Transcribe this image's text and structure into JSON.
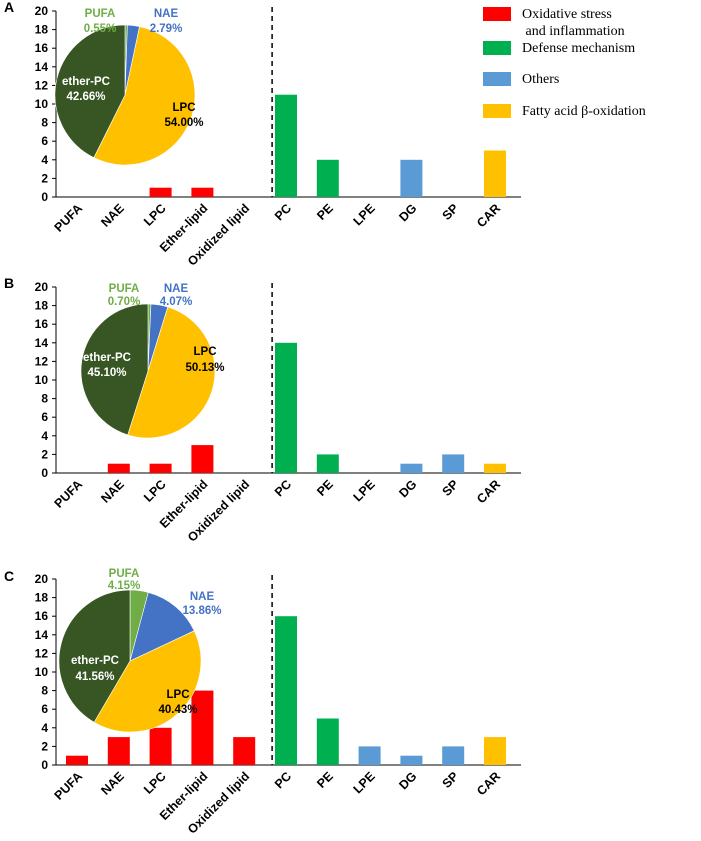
{
  "legend": [
    {
      "label_lines": [
        "Oxidative stress",
        " and inflammation"
      ],
      "color": "#ff0000"
    },
    {
      "label_lines": [
        "Defense mechanism"
      ],
      "color": "#00b050"
    },
    {
      "label_lines": [
        "Others"
      ],
      "color": "#5b9bd5"
    },
    {
      "label_lines": [
        "Fatty acid β-oxidation"
      ],
      "color": "#ffc000"
    }
  ],
  "chart_data": [
    {
      "panel": "A",
      "type": "bar",
      "categories": [
        "PUFA",
        "NAE",
        "LPC",
        "Ether-lipid",
        "Oxidized lipid",
        "PC",
        "PE",
        "LPE",
        "DG",
        "SP",
        "CAR"
      ],
      "values": [
        0,
        0,
        1,
        1,
        0,
        11,
        4,
        0,
        4,
        0,
        5
      ],
      "bar_colors": [
        "#ff0000",
        "#ff0000",
        "#ff0000",
        "#ff0000",
        "#ff0000",
        "#00b050",
        "#00b050",
        "#5b9bd5",
        "#5b9bd5",
        "#5b9bd5",
        "#ffc000"
      ],
      "yticks": [
        "0",
        "2",
        "4",
        "6",
        "8",
        "10",
        "12",
        "14",
        "16",
        "18",
        "20"
      ],
      "ylim": [
        0,
        20
      ],
      "divider_after": "Oxidized lipid",
      "inset_pie": {
        "type": "pie",
        "slices": [
          {
            "name": "PUFA",
            "pct_label": "0.55%",
            "value": 0.55,
            "color": "#70ad47",
            "label_color": "#70ad47"
          },
          {
            "name": "NAE",
            "pct_label": "2.79%",
            "value": 2.79,
            "color": "#4472c4",
            "label_color": "#4472c4"
          },
          {
            "name": "LPC",
            "pct_label": "54.00%",
            "value": 54.0,
            "color": "#ffc000",
            "label_color": "#000000"
          },
          {
            "name": "ether-PC",
            "pct_label": "42.66%",
            "value": 42.66,
            "color": "#375623",
            "label_color": "#ffffff"
          }
        ]
      }
    },
    {
      "panel": "B",
      "type": "bar",
      "categories": [
        "PUFA",
        "NAE",
        "LPC",
        "Ether-lipid",
        "Oxidized lipid",
        "PC",
        "PE",
        "LPE",
        "DG",
        "SP",
        "CAR"
      ],
      "values": [
        0,
        1,
        1,
        3,
        0,
        14,
        2,
        0,
        1,
        2,
        1
      ],
      "bar_colors": [
        "#ff0000",
        "#ff0000",
        "#ff0000",
        "#ff0000",
        "#ff0000",
        "#00b050",
        "#00b050",
        "#5b9bd5",
        "#5b9bd5",
        "#5b9bd5",
        "#ffc000"
      ],
      "yticks": [
        "0",
        "2",
        "4",
        "6",
        "8",
        "10",
        "12",
        "14",
        "16",
        "18",
        "20"
      ],
      "ylim": [
        0,
        20
      ],
      "divider_after": "Oxidized lipid",
      "inset_pie": {
        "type": "pie",
        "slices": [
          {
            "name": "PUFA",
            "pct_label": "0.70%",
            "value": 0.7,
            "color": "#70ad47",
            "label_color": "#70ad47"
          },
          {
            "name": "NAE",
            "pct_label": "4.07%",
            "value": 4.07,
            "color": "#4472c4",
            "label_color": "#4472c4"
          },
          {
            "name": "LPC",
            "pct_label": "50.13%",
            "value": 50.13,
            "color": "#ffc000",
            "label_color": "#000000"
          },
          {
            "name": "ether-PC",
            "pct_label": "45.10%",
            "value": 45.1,
            "color": "#375623",
            "label_color": "#ffffff"
          }
        ]
      }
    },
    {
      "panel": "C",
      "type": "bar",
      "categories": [
        "PUFA",
        "NAE",
        "LPC",
        "Ether-lipid",
        "Oxidized lipid",
        "PC",
        "PE",
        "LPE",
        "DG",
        "SP",
        "CAR"
      ],
      "values": [
        1,
        3,
        4,
        8,
        3,
        16,
        5,
        2,
        1,
        2,
        3
      ],
      "bar_colors": [
        "#ff0000",
        "#ff0000",
        "#ff0000",
        "#ff0000",
        "#ff0000",
        "#00b050",
        "#00b050",
        "#5b9bd5",
        "#5b9bd5",
        "#5b9bd5",
        "#ffc000"
      ],
      "yticks": [
        "0",
        "2",
        "4",
        "6",
        "8",
        "10",
        "12",
        "14",
        "16",
        "18",
        "20"
      ],
      "ylim": [
        0,
        20
      ],
      "divider_after": "Oxidized lipid",
      "inset_pie": {
        "type": "pie",
        "slices": [
          {
            "name": "PUFA",
            "pct_label": "4.15%",
            "value": 4.15,
            "color": "#70ad47",
            "label_color": "#70ad47"
          },
          {
            "name": "NAE",
            "pct_label": "13.86%",
            "value": 13.86,
            "color": "#4472c4",
            "label_color": "#4472c4"
          },
          {
            "name": "LPC",
            "pct_label": "40.43%",
            "value": 40.43,
            "color": "#ffc000",
            "label_color": "#000000"
          },
          {
            "name": "ether-PC",
            "pct_label": "41.56%",
            "value": 41.56,
            "color": "#375623",
            "label_color": "#ffffff"
          }
        ]
      }
    }
  ]
}
